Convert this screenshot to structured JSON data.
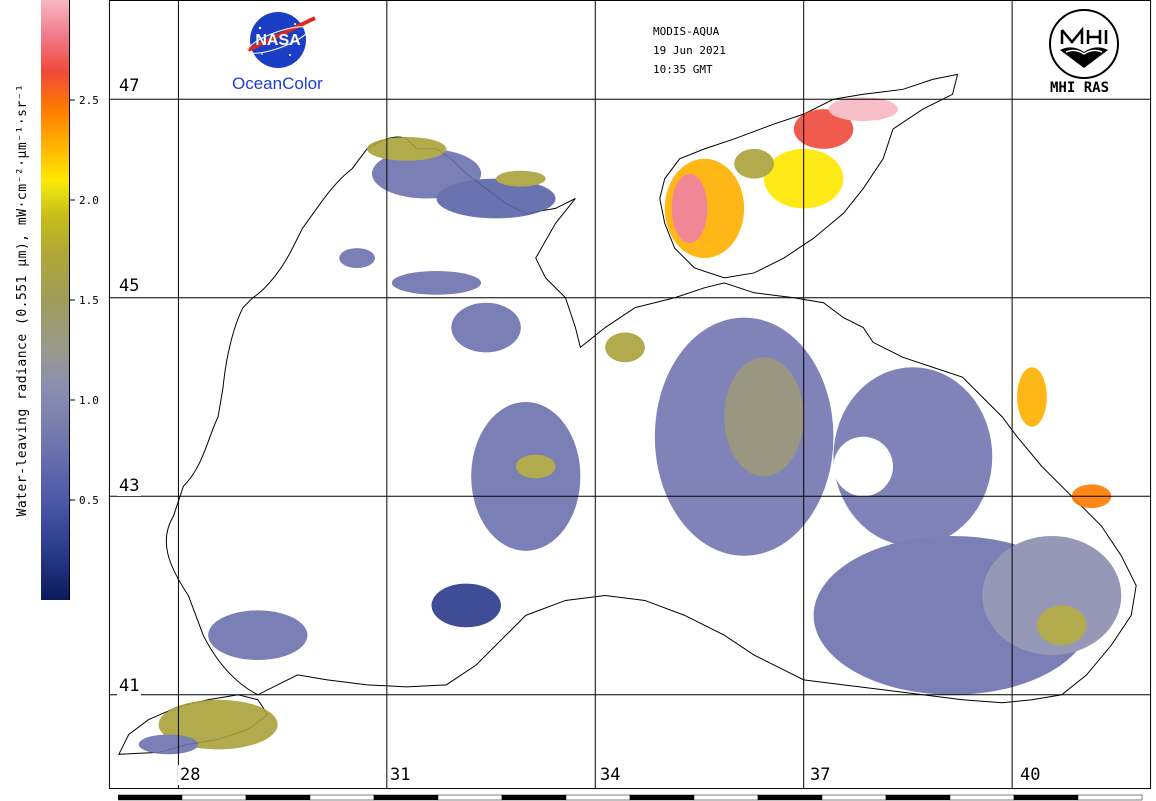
{
  "colorbar": {
    "title": "Water-leaving radiance (0.551 μm), mW·cm⁻²·μm⁻¹·sr⁻¹",
    "ticks": [
      {
        "label": "2.5",
        "value": 2.5
      },
      {
        "label": "2.0",
        "value": 2.0
      },
      {
        "label": "1.5",
        "value": 1.5
      },
      {
        "label": "1.0",
        "value": 1.0
      },
      {
        "label": "0.5",
        "value": 0.5
      }
    ],
    "range": [
      0.0,
      3.0
    ]
  },
  "header": {
    "sensor": "MODIS-AQUA",
    "date": "19 Jun 2021",
    "time": "10:35 GMT"
  },
  "logos": {
    "nasa_text": "NASA",
    "oceancolor_text": "OceanColor",
    "mhi_text": "MHI RAS"
  },
  "grid": {
    "latitudes": [
      "47",
      "45",
      "43",
      "41"
    ],
    "longitudes": [
      "28",
      "31",
      "34",
      "37",
      "40"
    ]
  },
  "colors": {
    "coast": "#000000",
    "low": "#2a3a8a",
    "mid": "#8a8db0",
    "olive": "#a9a23a",
    "yellow": "#ffe800",
    "orange": "#ff7a00",
    "pink": "#f7b8c2"
  }
}
